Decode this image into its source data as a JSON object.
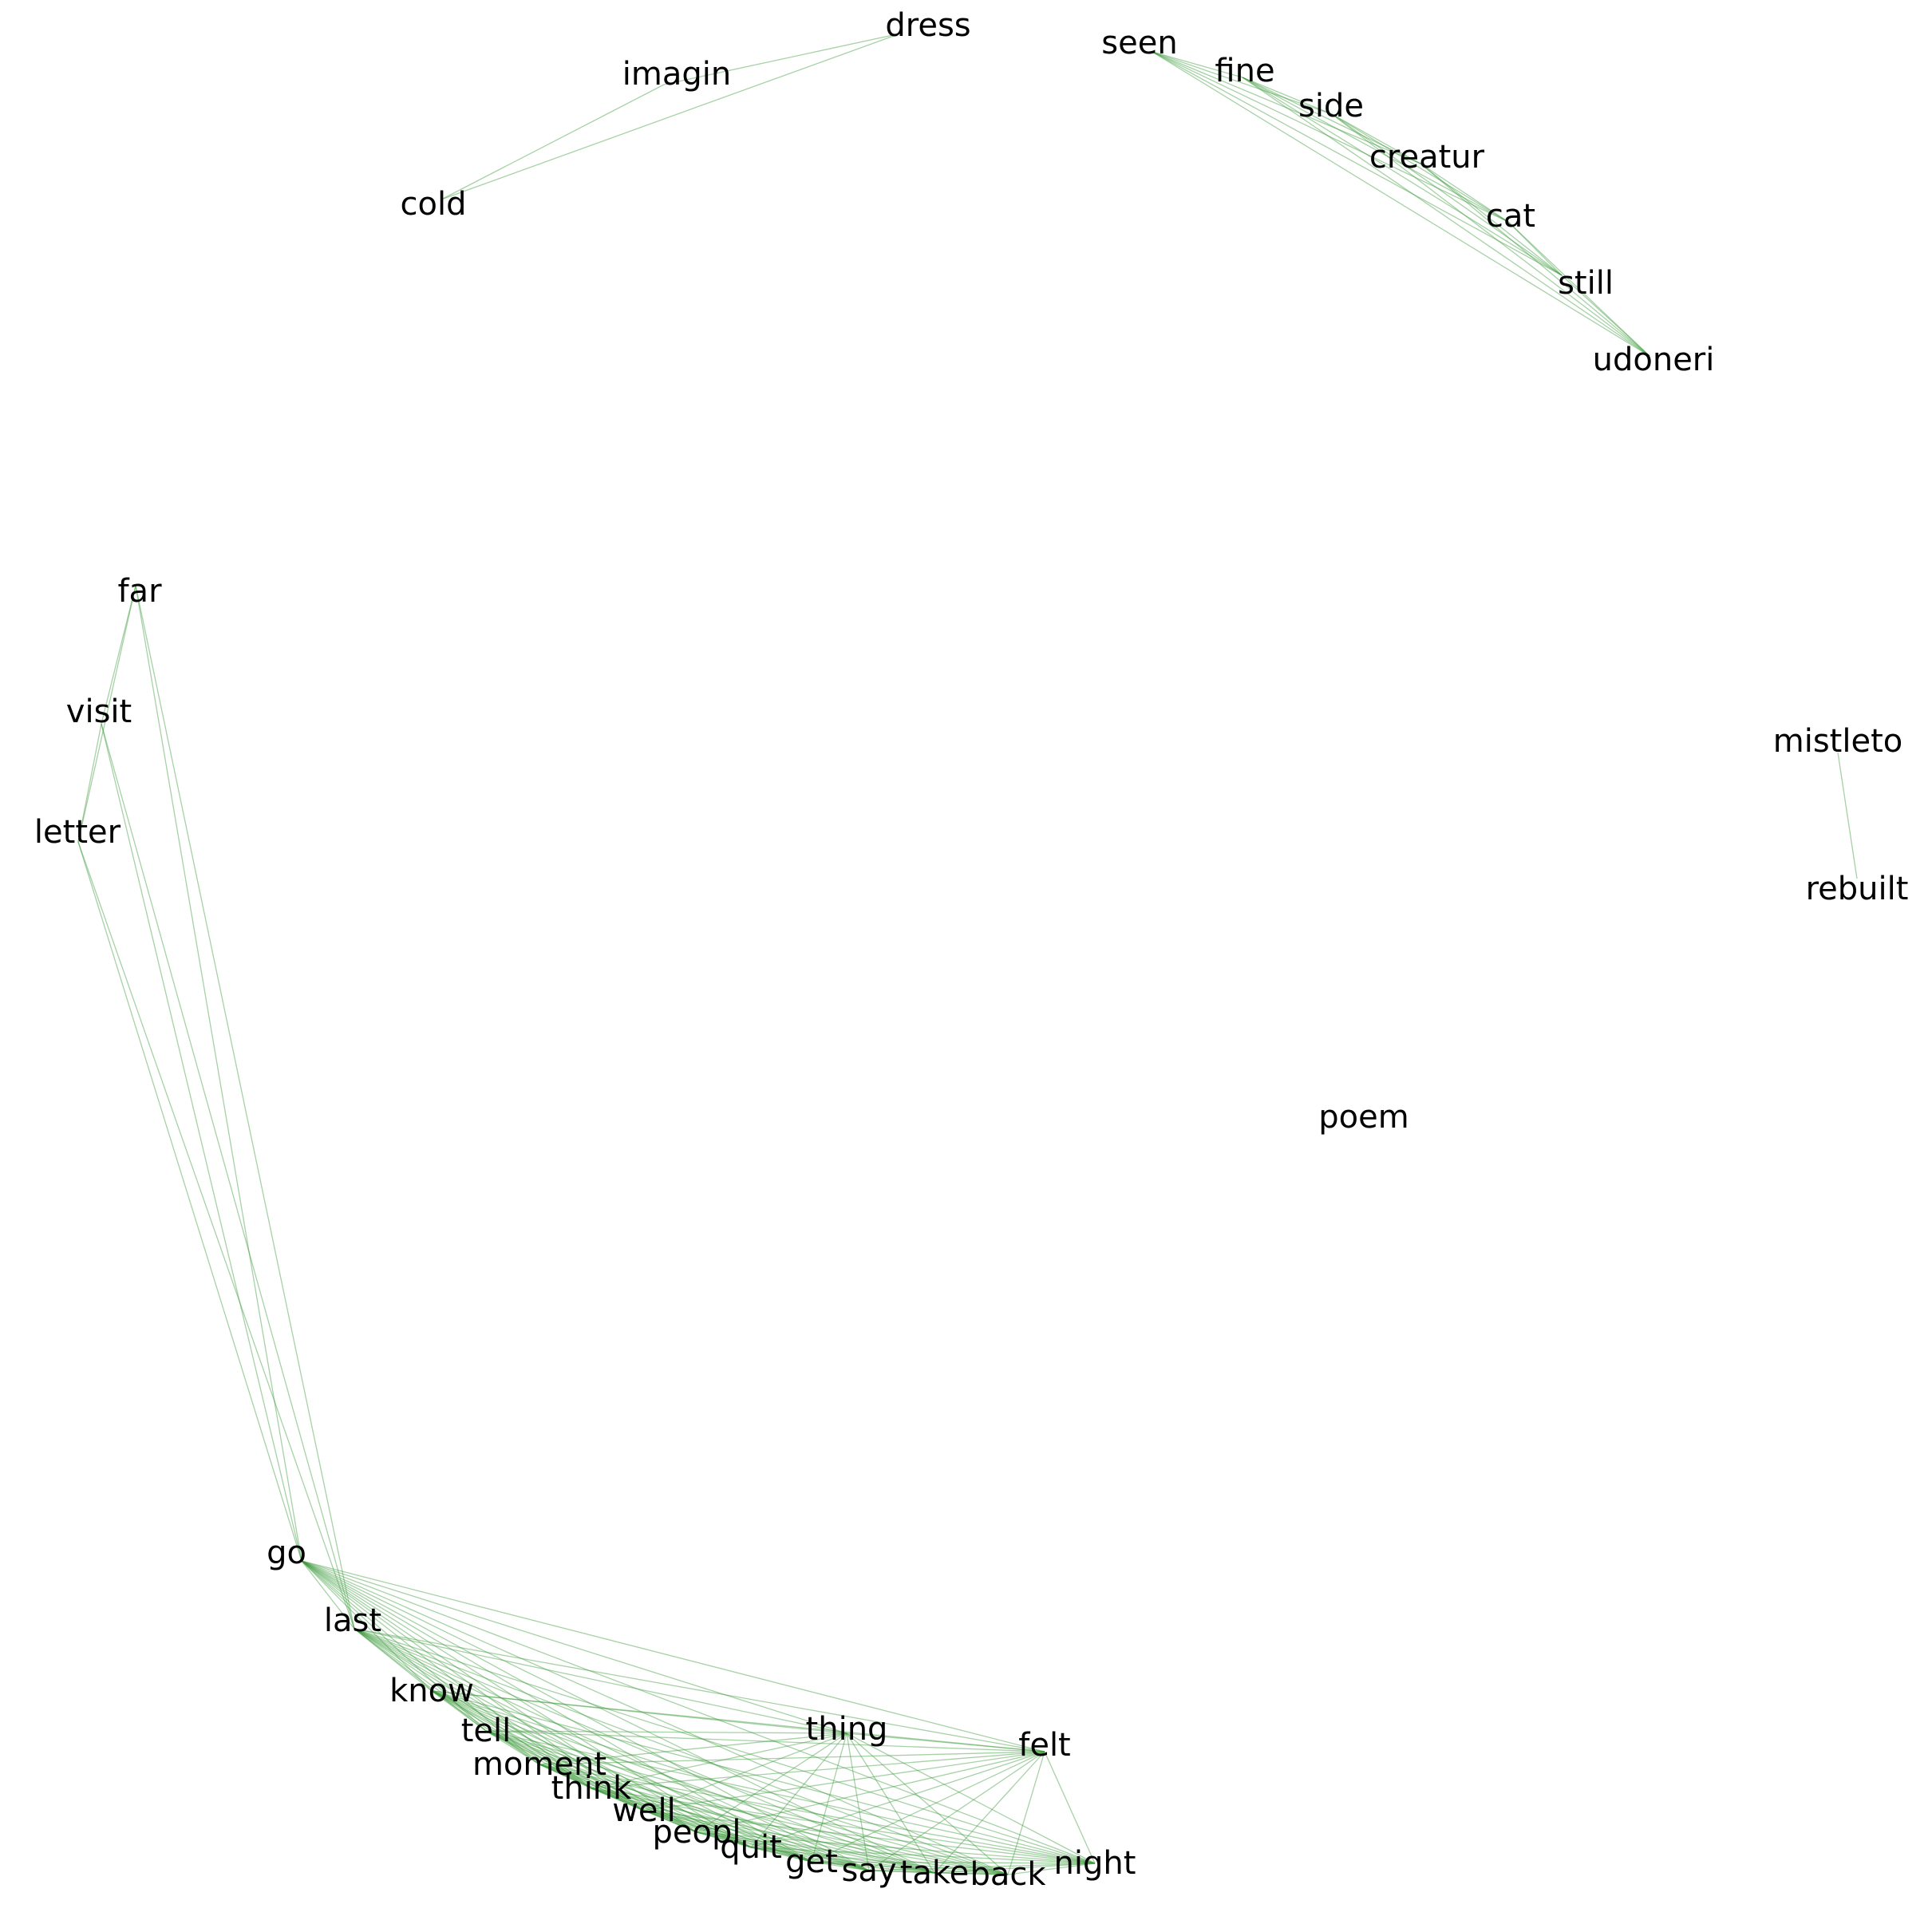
{
  "graph": {
    "edge_color": "#3a9a3a",
    "label_color": "#000000",
    "nodes": [
      {
        "id": "dress",
        "label": "dress"
      },
      {
        "id": "imagin",
        "label": "imagin"
      },
      {
        "id": "cold",
        "label": "cold"
      },
      {
        "id": "seen",
        "label": "seen"
      },
      {
        "id": "fine",
        "label": "fine"
      },
      {
        "id": "side",
        "label": "side"
      },
      {
        "id": "creatur",
        "label": "creatur"
      },
      {
        "id": "cat",
        "label": "cat"
      },
      {
        "id": "still",
        "label": "still"
      },
      {
        "id": "udoneri",
        "label": "udoneri"
      },
      {
        "id": "far",
        "label": "far"
      },
      {
        "id": "visit",
        "label": "visit"
      },
      {
        "id": "letter",
        "label": "letter"
      },
      {
        "id": "mistleto",
        "label": "mistleto"
      },
      {
        "id": "rebuilt",
        "label": "rebuilt"
      },
      {
        "id": "poem",
        "label": "poem"
      },
      {
        "id": "go",
        "label": "go"
      },
      {
        "id": "last",
        "label": "last"
      },
      {
        "id": "know",
        "label": "know"
      },
      {
        "id": "tell",
        "label": "tell"
      },
      {
        "id": "moment",
        "label": "moment"
      },
      {
        "id": "think",
        "label": "think"
      },
      {
        "id": "well",
        "label": "well"
      },
      {
        "id": "peopl",
        "label": "peopl"
      },
      {
        "id": "quit",
        "label": "quit"
      },
      {
        "id": "get",
        "label": "get"
      },
      {
        "id": "say",
        "label": "say"
      },
      {
        "id": "take",
        "label": "take"
      },
      {
        "id": "back",
        "label": "back"
      },
      {
        "id": "night",
        "label": "night"
      },
      {
        "id": "thing",
        "label": "thing"
      },
      {
        "id": "felt",
        "label": "felt"
      }
    ],
    "edges": [
      [
        "dress",
        "imagin"
      ],
      [
        "dress",
        "cold"
      ],
      [
        "imagin",
        "cold"
      ],
      [
        "seen",
        "fine"
      ],
      [
        "seen",
        "side"
      ],
      [
        "seen",
        "creatur"
      ],
      [
        "seen",
        "cat"
      ],
      [
        "seen",
        "still"
      ],
      [
        "seen",
        "udoneri"
      ],
      [
        "fine",
        "side"
      ],
      [
        "fine",
        "creatur"
      ],
      [
        "fine",
        "cat"
      ],
      [
        "fine",
        "still"
      ],
      [
        "fine",
        "udoneri"
      ],
      [
        "side",
        "creatur"
      ],
      [
        "side",
        "cat"
      ],
      [
        "side",
        "still"
      ],
      [
        "side",
        "udoneri"
      ],
      [
        "creatur",
        "cat"
      ],
      [
        "creatur",
        "still"
      ],
      [
        "creatur",
        "udoneri"
      ],
      [
        "cat",
        "still"
      ],
      [
        "cat",
        "udoneri"
      ],
      [
        "still",
        "udoneri"
      ],
      [
        "mistleto",
        "rebuilt"
      ],
      [
        "far",
        "visit"
      ],
      [
        "far",
        "letter"
      ],
      [
        "far",
        "go"
      ],
      [
        "far",
        "last"
      ],
      [
        "visit",
        "letter"
      ],
      [
        "visit",
        "go"
      ],
      [
        "visit",
        "last"
      ],
      [
        "letter",
        "go"
      ],
      [
        "letter",
        "last"
      ],
      [
        "go",
        "last"
      ],
      [
        "go",
        "know"
      ],
      [
        "go",
        "tell"
      ],
      [
        "go",
        "moment"
      ],
      [
        "go",
        "think"
      ],
      [
        "go",
        "well"
      ],
      [
        "go",
        "peopl"
      ],
      [
        "go",
        "quit"
      ],
      [
        "go",
        "get"
      ],
      [
        "go",
        "say"
      ],
      [
        "go",
        "take"
      ],
      [
        "go",
        "back"
      ],
      [
        "go",
        "night"
      ],
      [
        "go",
        "thing"
      ],
      [
        "go",
        "felt"
      ],
      [
        "last",
        "know"
      ],
      [
        "last",
        "tell"
      ],
      [
        "last",
        "moment"
      ],
      [
        "last",
        "think"
      ],
      [
        "last",
        "well"
      ],
      [
        "last",
        "peopl"
      ],
      [
        "last",
        "quit"
      ],
      [
        "last",
        "get"
      ],
      [
        "last",
        "say"
      ],
      [
        "last",
        "take"
      ],
      [
        "last",
        "back"
      ],
      [
        "last",
        "night"
      ],
      [
        "last",
        "thing"
      ],
      [
        "last",
        "felt"
      ],
      [
        "know",
        "tell"
      ],
      [
        "know",
        "moment"
      ],
      [
        "know",
        "think"
      ],
      [
        "know",
        "well"
      ],
      [
        "know",
        "peopl"
      ],
      [
        "know",
        "quit"
      ],
      [
        "know",
        "get"
      ],
      [
        "know",
        "say"
      ],
      [
        "know",
        "take"
      ],
      [
        "know",
        "back"
      ],
      [
        "know",
        "night"
      ],
      [
        "know",
        "thing"
      ],
      [
        "know",
        "felt"
      ],
      [
        "tell",
        "moment"
      ],
      [
        "tell",
        "think"
      ],
      [
        "tell",
        "well"
      ],
      [
        "tell",
        "peopl"
      ],
      [
        "tell",
        "quit"
      ],
      [
        "tell",
        "get"
      ],
      [
        "tell",
        "say"
      ],
      [
        "tell",
        "take"
      ],
      [
        "tell",
        "back"
      ],
      [
        "tell",
        "night"
      ],
      [
        "tell",
        "thing"
      ],
      [
        "tell",
        "felt"
      ],
      [
        "moment",
        "think"
      ],
      [
        "moment",
        "well"
      ],
      [
        "moment",
        "peopl"
      ],
      [
        "moment",
        "quit"
      ],
      [
        "moment",
        "get"
      ],
      [
        "moment",
        "say"
      ],
      [
        "moment",
        "take"
      ],
      [
        "moment",
        "back"
      ],
      [
        "moment",
        "night"
      ],
      [
        "moment",
        "thing"
      ],
      [
        "moment",
        "felt"
      ],
      [
        "think",
        "well"
      ],
      [
        "think",
        "peopl"
      ],
      [
        "think",
        "quit"
      ],
      [
        "think",
        "get"
      ],
      [
        "think",
        "say"
      ],
      [
        "think",
        "take"
      ],
      [
        "think",
        "back"
      ],
      [
        "think",
        "night"
      ],
      [
        "think",
        "thing"
      ],
      [
        "think",
        "felt"
      ],
      [
        "well",
        "peopl"
      ],
      [
        "well",
        "quit"
      ],
      [
        "well",
        "get"
      ],
      [
        "well",
        "say"
      ],
      [
        "well",
        "take"
      ],
      [
        "well",
        "back"
      ],
      [
        "well",
        "night"
      ],
      [
        "well",
        "thing"
      ],
      [
        "well",
        "felt"
      ],
      [
        "peopl",
        "quit"
      ],
      [
        "peopl",
        "get"
      ],
      [
        "peopl",
        "say"
      ],
      [
        "peopl",
        "take"
      ],
      [
        "peopl",
        "back"
      ],
      [
        "peopl",
        "night"
      ],
      [
        "peopl",
        "thing"
      ],
      [
        "peopl",
        "felt"
      ],
      [
        "quit",
        "get"
      ],
      [
        "quit",
        "say"
      ],
      [
        "quit",
        "take"
      ],
      [
        "quit",
        "back"
      ],
      [
        "quit",
        "night"
      ],
      [
        "quit",
        "thing"
      ],
      [
        "quit",
        "felt"
      ],
      [
        "get",
        "say"
      ],
      [
        "get",
        "take"
      ],
      [
        "get",
        "back"
      ],
      [
        "get",
        "night"
      ],
      [
        "get",
        "thing"
      ],
      [
        "get",
        "felt"
      ],
      [
        "say",
        "take"
      ],
      [
        "say",
        "back"
      ],
      [
        "say",
        "night"
      ],
      [
        "say",
        "thing"
      ],
      [
        "say",
        "felt"
      ],
      [
        "take",
        "back"
      ],
      [
        "take",
        "night"
      ],
      [
        "take",
        "thing"
      ],
      [
        "take",
        "felt"
      ],
      [
        "back",
        "night"
      ],
      [
        "back",
        "thing"
      ],
      [
        "back",
        "felt"
      ],
      [
        "night",
        "thing"
      ],
      [
        "night",
        "felt"
      ],
      [
        "thing",
        "felt"
      ]
    ]
  }
}
